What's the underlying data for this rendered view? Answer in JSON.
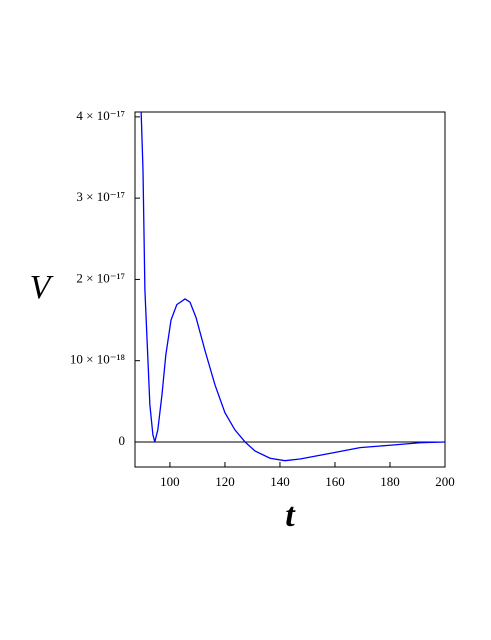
{
  "chart_data": {
    "type": "line",
    "x_label": "t",
    "y_label": "V",
    "x": [
      89.5,
      90.2,
      90.9,
      92.0,
      92.7,
      93.8,
      94.5,
      95.6,
      97.1,
      98.5,
      100.4,
      102.5,
      105.5,
      107.3,
      109.5,
      112.7,
      116.4,
      120.0,
      123.6,
      127.3,
      130.9,
      136.4,
      141.8,
      147.3,
      158.2,
      169.1,
      180.0,
      191.0,
      200.0
    ],
    "values": [
      4.1e-17,
      3.35e-17,
      1.87e-17,
      1.01e-17,
      4.6e-18,
      9e-19,
      0,
      1.5e-18,
      5.8e-18,
      1.07e-17,
      1.5e-17,
      1.69e-17,
      1.76e-17,
      1.72e-17,
      1.53e-17,
      1.13e-17,
      7e-18,
      3.6e-18,
      1.5e-18,
      0,
      -1.1e-18,
      -2e-18,
      -2.3e-18,
      -2.1e-18,
      -1.4e-18,
      -7e-19,
      -4e-19,
      -1e-19,
      0
    ],
    "color": "#0000ff",
    "xlim": [
      87.3,
      200
    ],
    "ylim": [
      -3.08e-18,
      4.06e-17
    ],
    "xticks": [
      100,
      120,
      140,
      160,
      180,
      200
    ],
    "yticks": [
      0,
      {
        "value": 1e-17,
        "label": "10 × 10⁻¹⁸"
      },
      {
        "value": 2e-17,
        "label": "2 × 10⁻¹⁷"
      },
      {
        "value": 3e-17,
        "label": "3 × 10⁻¹⁷"
      },
      {
        "value": 4e-17,
        "label": "4 × 10⁻¹⁷"
      }
    ],
    "zero_line": true
  }
}
